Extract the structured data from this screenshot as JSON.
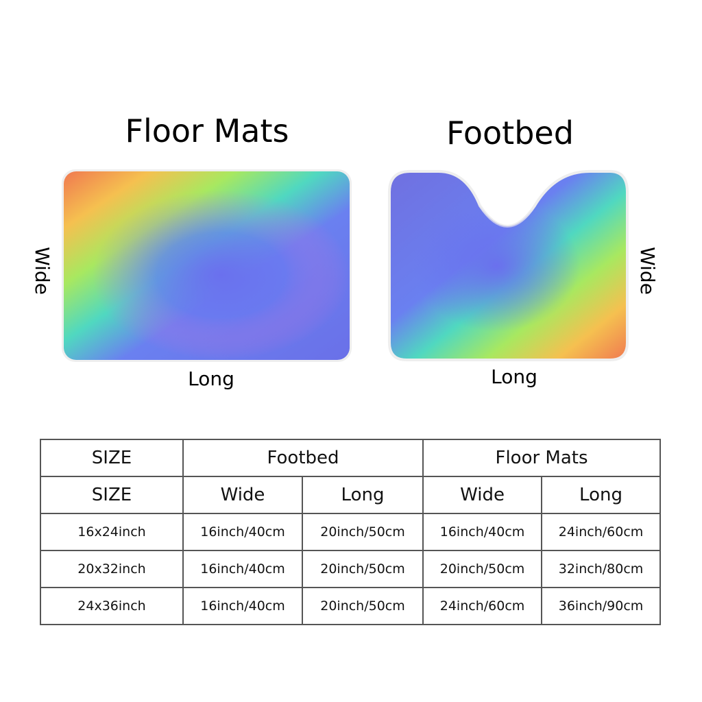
{
  "products": [
    {
      "title": "Floor Mats",
      "wide_label": "Wide",
      "long_label": "Long"
    },
    {
      "title": "Footbed",
      "wide_label": "Wide",
      "long_label": "Long"
    }
  ],
  "table": {
    "header": [
      "SIZE",
      "Footbed",
      "Floor Mats"
    ],
    "subheader": [
      "SIZE",
      "Wide",
      "Long",
      "Wide",
      "Long"
    ],
    "rows": [
      [
        "16x24inch",
        "16inch/40cm",
        "20inch/50cm",
        "16inch/40cm",
        "24inch/60cm"
      ],
      [
        "20x32inch",
        "16inch/40cm",
        "20inch/50cm",
        "20inch/50cm",
        "32inch/80cm"
      ],
      [
        "24x36inch",
        "16inch/40cm",
        "20inch/50cm",
        "24inch/60cm",
        "36inch/90cm"
      ]
    ]
  }
}
